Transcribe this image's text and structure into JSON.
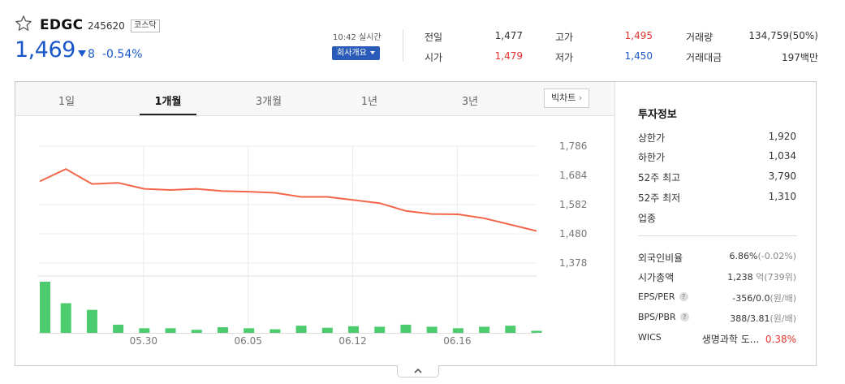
{
  "stock": {
    "name": "EDGC",
    "code": "245620",
    "market": "코스닥",
    "price": "1,469",
    "change_amount": "8",
    "change_rate": "-0.54%",
    "direction": "down",
    "time": "10:42 실시간",
    "company_button": "회사개요"
  },
  "quote": {
    "prev_close_label": "전일",
    "prev_close": "1,477",
    "high_label": "고가",
    "high": "1,495",
    "volume_label": "거래량",
    "volume": "134,759(50%)",
    "open_label": "시가",
    "open": "1,479",
    "low_label": "저가",
    "low": "1,450",
    "amount_label": "거래대금",
    "amount": "197백만"
  },
  "tabs": [
    {
      "label": "1일",
      "active": false
    },
    {
      "label": "1개월",
      "active": true
    },
    {
      "label": "3개월",
      "active": false
    },
    {
      "label": "1년",
      "active": false
    },
    {
      "label": "3년",
      "active": false
    }
  ],
  "big_chart_button": "빅차트",
  "chart_data": {
    "type": "line",
    "x_tick_labels": [
      "05.30",
      "06.05",
      "06.12",
      "06.16"
    ],
    "y_tick_labels": [
      "1,786",
      "1,684",
      "1,582",
      "1,480",
      "1,378"
    ],
    "ylim": [
      1378,
      1786
    ],
    "grid": true,
    "series": [
      {
        "values": [
          1663,
          1706,
          1654,
          1658,
          1637,
          1633,
          1637,
          1629,
          1627,
          1623,
          1609,
          1609,
          1598,
          1587,
          1560,
          1549,
          1548,
          1534,
          1512,
          1490
        ]
      }
    ],
    "volume_relative": [
      1.0,
      0.58,
      0.45,
      0.16,
      0.09,
      0.09,
      0.06,
      0.11,
      0.09,
      0.07,
      0.14,
      0.1,
      0.13,
      0.12,
      0.16,
      0.12,
      0.09,
      0.12,
      0.14,
      0.04
    ],
    "line_color": "#f26749",
    "volume_color": "#4ccc6e"
  },
  "invest": {
    "title": "투자정보",
    "rows1": [
      {
        "label": "상한가",
        "value": "1,920",
        "color": "red"
      },
      {
        "label": "하한가",
        "value": "1,034",
        "color": "blue"
      },
      {
        "label": "52주 최고",
        "value": "3,790",
        "color": "dark"
      },
      {
        "label": "52주 최저",
        "value": "1,310",
        "color": "dark"
      },
      {
        "label": "업종",
        "value": "",
        "color": "dark"
      }
    ],
    "foreign_label": "외국인비율",
    "foreign_value": "6.86%",
    "foreign_change": "(-0.02%)",
    "mcap_label": "시가총액",
    "mcap_value": "1,238",
    "mcap_unit": "억(739위)",
    "eps_label": "EPS/PER",
    "eps_value": "-356/0.0",
    "eps_unit": "(원/배)",
    "bps_label": "BPS/PBR",
    "bps_value": "388/3.81",
    "bps_unit": "(원/배)",
    "wics_label": "WICS",
    "wics_value": "생명과학 도...",
    "wics_rate": "0.38%",
    "help_mark": "?"
  }
}
